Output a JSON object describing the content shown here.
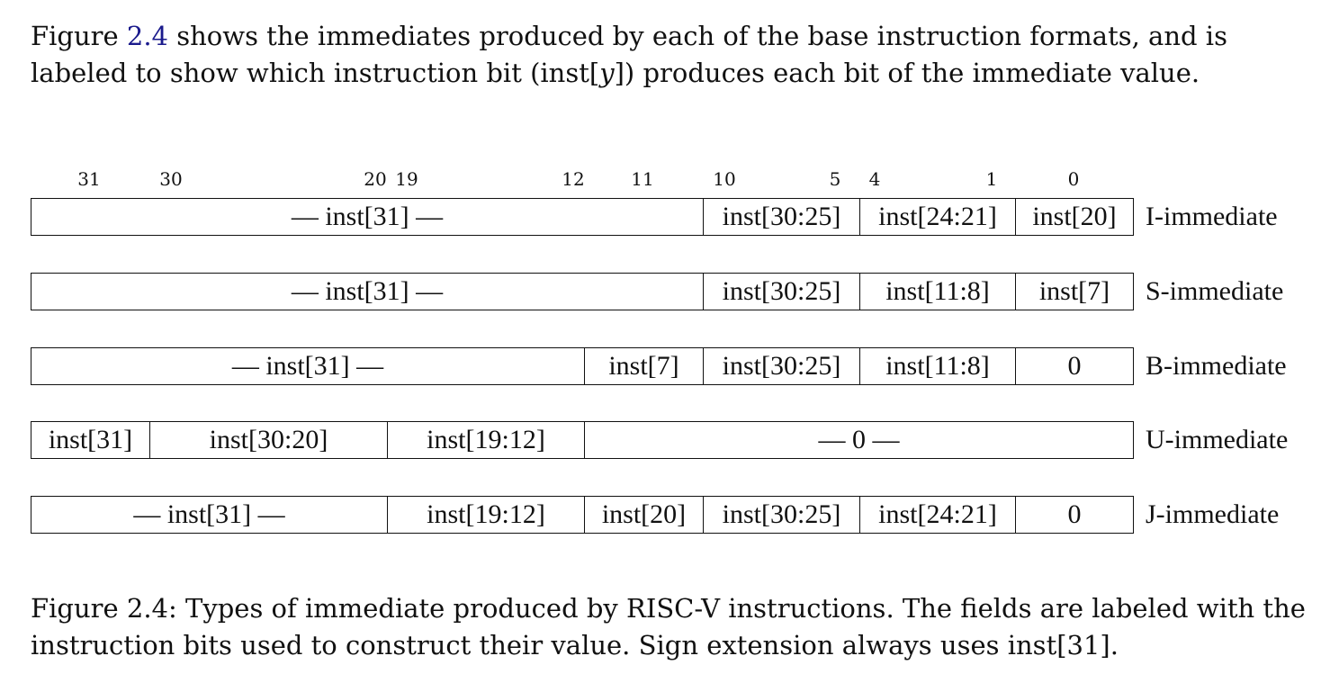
{
  "intro": {
    "part1": "Figure ",
    "ref": "2.4",
    "part2": " shows the immediates produced by each of the base instruction formats, and is labeled to show which instruction bit (inst[",
    "var": "y",
    "part3": "]) produces each bit of the immediate value."
  },
  "bit_numbers": [
    "31",
    "30",
    "20",
    "19",
    "12",
    "11",
    "10",
    "5",
    "4",
    "1",
    "0"
  ],
  "formats": [
    {
      "name": "I-immediate",
      "fields": [
        "— inst[31] —",
        "inst[30:25]",
        "inst[24:21]",
        "inst[20]"
      ]
    },
    {
      "name": "S-immediate",
      "fields": [
        "— inst[31] —",
        "inst[30:25]",
        "inst[11:8]",
        "inst[7]"
      ]
    },
    {
      "name": "B-immediate",
      "fields": [
        "— inst[31] —",
        "inst[7]",
        "inst[30:25]",
        "inst[11:8]",
        "0"
      ]
    },
    {
      "name": "U-immediate",
      "fields": [
        "inst[31]",
        "inst[30:20]",
        "inst[19:12]",
        "— 0 —"
      ]
    },
    {
      "name": "J-immediate",
      "fields": [
        "— inst[31] —",
        "inst[19:12]",
        "inst[20]",
        "inst[30:25]",
        "inst[24:21]",
        "0"
      ]
    }
  ],
  "caption": {
    "line1": "Figure 2.4: Types of immediate produced by RISC-V instructions. The fields are labeled with the",
    "line2": "instruction bits used to construct their value. Sign extension always uses inst[31]."
  }
}
